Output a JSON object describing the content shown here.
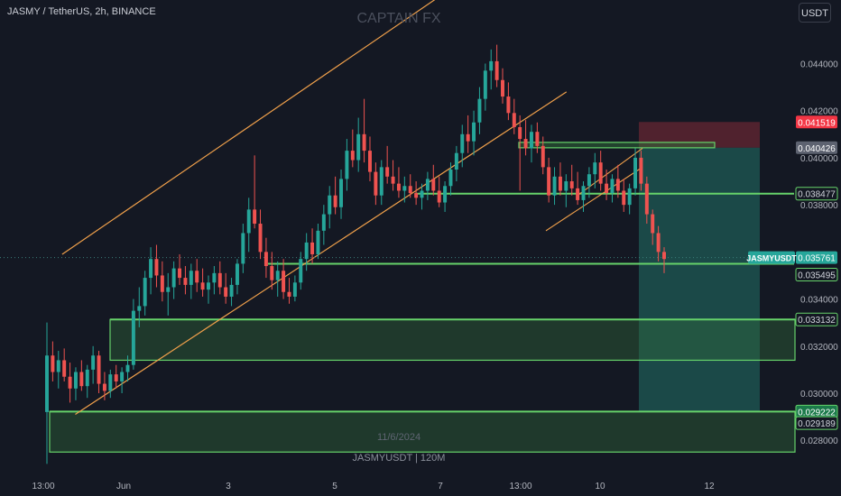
{
  "header": {
    "symbol_line": "JASMY / TetherUS, 2h, BINANCE",
    "currency_button": "USDT",
    "watermark": "CAPTAIN FX",
    "date_watermark": "11/6/2024",
    "symbol_watermark": "JASMYUSDT | 120M"
  },
  "colors": {
    "background": "#141823",
    "up_candle": "#26a69a",
    "down_candle": "#ef5350",
    "channel_line": "#f0a04b",
    "zone_line": "#66d26a",
    "zone_fill": "#2f6b3a",
    "target_fill": "#1d5a55",
    "stop_fill": "#5a2430",
    "price_tag_current": "#26a69a",
    "price_tag_stop": "#f23645"
  },
  "chart_data": {
    "type": "candlestick",
    "symbol": "JASMYUSDT",
    "interval": "2h",
    "exchange": "BINANCE",
    "y_range": [
      0.0264,
      0.0467
    ],
    "y_ticks": [
      "0.044000",
      "0.042000",
      "0.040000",
      "0.038000",
      "0.034000",
      "0.032000",
      "0.030000",
      "0.028000"
    ],
    "x_ticks": [
      "13:00",
      "Jun",
      "3",
      "5",
      "7",
      "13:00",
      "10",
      "12"
    ],
    "price_labels": [
      {
        "text": "0.041519",
        "value": 0.041519,
        "style": "stop"
      },
      {
        "text": "0.040426",
        "value": 0.040426,
        "style": "entry"
      },
      {
        "text": "0.038477",
        "value": 0.038477,
        "style": "zone"
      },
      {
        "text": "0.035761",
        "value": 0.035761,
        "style": "current"
      },
      {
        "text": "0.035495",
        "value": 0.035495,
        "style": "zone"
      },
      {
        "text": "0.033132",
        "value": 0.033132,
        "style": "zone"
      },
      {
        "text": "0.029222",
        "value": 0.029222,
        "style": "zone-solid"
      },
      {
        "text": "0.029189",
        "value": 0.029189,
        "style": "zone"
      }
    ],
    "symbol_tag": "JASMYUSDT",
    "levels": [
      {
        "name": "supply-line",
        "value": 0.0405
      },
      {
        "name": "mid-support",
        "value": 0.038477
      },
      {
        "name": "current-support",
        "value": 0.035495
      }
    ],
    "zones": [
      {
        "name": "upper-demand",
        "top": 0.033132,
        "bottom": 0.0314
      },
      {
        "name": "lower-demand",
        "top": 0.029222,
        "bottom": 0.0275
      }
    ],
    "short_position": {
      "entry": 0.040426,
      "stop": 0.041519,
      "target": 0.029222
    },
    "channel": {
      "upper": [
        {
          "date": "2024-05-30 22:00",
          "price": 0.0359
        },
        {
          "date": "2024-06-07 06:00",
          "price": 0.0471
        }
      ],
      "lower": [
        {
          "date": "2024-05-31 04:00",
          "price": 0.0291
        },
        {
          "date": "2024-06-09 12:00",
          "price": 0.0428
        }
      ]
    },
    "candles": [
      [
        0.0292,
        0.033,
        0.027,
        0.0316
      ],
      [
        0.0316,
        0.0322,
        0.0305,
        0.0309
      ],
      [
        0.0309,
        0.0318,
        0.0302,
        0.0314
      ],
      [
        0.0314,
        0.0319,
        0.0305,
        0.0307
      ],
      [
        0.0307,
        0.0313,
        0.0296,
        0.0302
      ],
      [
        0.0302,
        0.0311,
        0.0297,
        0.0309
      ],
      [
        0.0309,
        0.0314,
        0.0301,
        0.0303
      ],
      [
        0.0303,
        0.0312,
        0.0298,
        0.031
      ],
      [
        0.031,
        0.032,
        0.0304,
        0.0316
      ],
      [
        0.0316,
        0.0318,
        0.03,
        0.0304
      ],
      [
        0.0304,
        0.0309,
        0.0297,
        0.0301
      ],
      [
        0.0301,
        0.031,
        0.0298,
        0.0308
      ],
      [
        0.0308,
        0.0312,
        0.0302,
        0.0305
      ],
      [
        0.0305,
        0.0311,
        0.03,
        0.0309
      ],
      [
        0.0309,
        0.0316,
        0.0305,
        0.0312
      ],
      [
        0.0312,
        0.034,
        0.031,
        0.0335
      ],
      [
        0.0335,
        0.0345,
        0.0328,
        0.0337
      ],
      [
        0.0337,
        0.0352,
        0.0333,
        0.0349
      ],
      [
        0.0349,
        0.0362,
        0.0342,
        0.0357
      ],
      [
        0.0357,
        0.0363,
        0.0345,
        0.035
      ],
      [
        0.035,
        0.0356,
        0.0339,
        0.0343
      ],
      [
        0.0343,
        0.0351,
        0.0333,
        0.0345
      ],
      [
        0.0345,
        0.0356,
        0.034,
        0.0353
      ],
      [
        0.0353,
        0.0359,
        0.0346,
        0.0349
      ],
      [
        0.0349,
        0.0354,
        0.0342,
        0.0346
      ],
      [
        0.0346,
        0.0355,
        0.034,
        0.0352
      ],
      [
        0.0352,
        0.0357,
        0.0343,
        0.0347
      ],
      [
        0.0347,
        0.0353,
        0.0341,
        0.0344
      ],
      [
        0.0344,
        0.035,
        0.0338,
        0.0347
      ],
      [
        0.0347,
        0.0354,
        0.0342,
        0.0351
      ],
      [
        0.0351,
        0.0356,
        0.0342,
        0.0345
      ],
      [
        0.0345,
        0.0351,
        0.0338,
        0.0341
      ],
      [
        0.0341,
        0.0349,
        0.0337,
        0.0346
      ],
      [
        0.0346,
        0.0357,
        0.0342,
        0.0355
      ],
      [
        0.0355,
        0.0372,
        0.0351,
        0.0368
      ],
      [
        0.0368,
        0.0383,
        0.036,
        0.0378
      ],
      [
        0.0378,
        0.0401,
        0.037,
        0.0372
      ],
      [
        0.0372,
        0.0378,
        0.0357,
        0.036
      ],
      [
        0.036,
        0.0366,
        0.0349,
        0.0354
      ],
      [
        0.0354,
        0.036,
        0.0344,
        0.0348
      ],
      [
        0.0348,
        0.0356,
        0.0341,
        0.0352
      ],
      [
        0.0352,
        0.0357,
        0.034,
        0.0343
      ],
      [
        0.0343,
        0.0349,
        0.0338,
        0.0341
      ],
      [
        0.0341,
        0.035,
        0.0339,
        0.0347
      ],
      [
        0.0347,
        0.036,
        0.0344,
        0.0357
      ],
      [
        0.0357,
        0.0368,
        0.0352,
        0.0364
      ],
      [
        0.0364,
        0.037,
        0.0355,
        0.0359
      ],
      [
        0.0359,
        0.0372,
        0.0357,
        0.0369
      ],
      [
        0.0369,
        0.038,
        0.0363,
        0.0376
      ],
      [
        0.0376,
        0.0388,
        0.037,
        0.0384
      ],
      [
        0.0384,
        0.0392,
        0.0376,
        0.0379
      ],
      [
        0.0379,
        0.0395,
        0.0374,
        0.0391
      ],
      [
        0.0391,
        0.0408,
        0.0386,
        0.0403
      ],
      [
        0.0403,
        0.0412,
        0.0396,
        0.0399
      ],
      [
        0.0399,
        0.0417,
        0.0394,
        0.041
      ],
      [
        0.041,
        0.0425,
        0.0398,
        0.0403
      ],
      [
        0.0403,
        0.0409,
        0.039,
        0.0394
      ],
      [
        0.0394,
        0.0398,
        0.038,
        0.0384
      ],
      [
        0.0384,
        0.0399,
        0.038,
        0.0396
      ],
      [
        0.0396,
        0.0405,
        0.0389,
        0.0392
      ],
      [
        0.0392,
        0.0399,
        0.0386,
        0.0389
      ],
      [
        0.0389,
        0.0396,
        0.0383,
        0.0386
      ],
      [
        0.0386,
        0.0392,
        0.0381,
        0.0388
      ],
      [
        0.0388,
        0.0393,
        0.0383,
        0.0385
      ],
      [
        0.0385,
        0.039,
        0.038,
        0.0383
      ],
      [
        0.0383,
        0.0389,
        0.0378,
        0.0386
      ],
      [
        0.0386,
        0.0394,
        0.0382,
        0.0391
      ],
      [
        0.0391,
        0.0397,
        0.0384,
        0.0386
      ],
      [
        0.0386,
        0.0392,
        0.0379,
        0.0381
      ],
      [
        0.0381,
        0.039,
        0.0377,
        0.0388
      ],
      [
        0.0388,
        0.0398,
        0.0384,
        0.0395
      ],
      [
        0.0395,
        0.0405,
        0.039,
        0.0402
      ],
      [
        0.0402,
        0.0414,
        0.0396,
        0.041
      ],
      [
        0.041,
        0.0418,
        0.0402,
        0.0407
      ],
      [
        0.0407,
        0.042,
        0.0401,
        0.0415
      ],
      [
        0.0415,
        0.043,
        0.041,
        0.0425
      ],
      [
        0.0425,
        0.044,
        0.042,
        0.0437
      ],
      [
        0.0437,
        0.0446,
        0.0429,
        0.0441
      ],
      [
        0.0441,
        0.0448,
        0.043,
        0.0433
      ],
      [
        0.0433,
        0.0438,
        0.0423,
        0.0426
      ],
      [
        0.0426,
        0.0432,
        0.0416,
        0.0419
      ],
      [
        0.0419,
        0.0425,
        0.041,
        0.0413
      ],
      [
        0.0413,
        0.0418,
        0.0386,
        0.0408
      ],
      [
        0.0408,
        0.0416,
        0.0401,
        0.0404
      ],
      [
        0.0404,
        0.0414,
        0.0398,
        0.0411
      ],
      [
        0.0411,
        0.0415,
        0.0402,
        0.0405
      ],
      [
        0.0405,
        0.0409,
        0.0393,
        0.0396
      ],
      [
        0.0396,
        0.04,
        0.0381,
        0.0384
      ],
      [
        0.0384,
        0.0396,
        0.038,
        0.0392
      ],
      [
        0.0392,
        0.0398,
        0.0384,
        0.0386
      ],
      [
        0.0386,
        0.0393,
        0.0379,
        0.039
      ],
      [
        0.039,
        0.0397,
        0.0384,
        0.0387
      ],
      [
        0.0387,
        0.0394,
        0.038,
        0.0382
      ],
      [
        0.0382,
        0.039,
        0.0377,
        0.0388
      ],
      [
        0.0388,
        0.0396,
        0.0383,
        0.0393
      ],
      [
        0.0393,
        0.0402,
        0.0387,
        0.0398
      ],
      [
        0.0398,
        0.0403,
        0.0386,
        0.0389
      ],
      [
        0.0389,
        0.0395,
        0.0382,
        0.0385
      ],
      [
        0.0385,
        0.0393,
        0.0381,
        0.0391
      ],
      [
        0.0391,
        0.0397,
        0.0383,
        0.0386
      ],
      [
        0.0386,
        0.0391,
        0.0377,
        0.038
      ],
      [
        0.038,
        0.0389,
        0.0376,
        0.0387
      ],
      [
        0.0387,
        0.0404,
        0.0384,
        0.04
      ],
      [
        0.04,
        0.0403,
        0.0386,
        0.0389
      ],
      [
        0.0389,
        0.0392,
        0.0372,
        0.0376
      ],
      [
        0.0376,
        0.0378,
        0.0363,
        0.0368
      ],
      [
        0.0368,
        0.0371,
        0.0356,
        0.036
      ],
      [
        0.036,
        0.0362,
        0.0351,
        0.0357
      ]
    ]
  }
}
